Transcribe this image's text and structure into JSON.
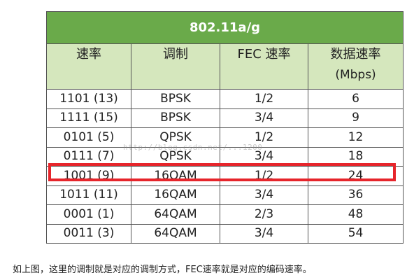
{
  "table": {
    "title": "802.11a/g",
    "headers": [
      "速率",
      "调制",
      "FEC 速率",
      "数据速率"
    ],
    "header_unit": "(Mbps)",
    "rows": [
      [
        "1101 (13)",
        "BPSK",
        "1/2",
        "6"
      ],
      [
        "1111 (15)",
        "BPSK",
        "3/4",
        "9"
      ],
      [
        "0101 (5)",
        "QPSK",
        "1/2",
        "12"
      ],
      [
        "0111 (7)",
        "QPSK",
        "3/4",
        "18"
      ],
      [
        "1001 (9)",
        "16QAM",
        "1/2",
        "24"
      ],
      [
        "1011 (11)",
        "16QAM",
        "3/4",
        "36"
      ],
      [
        "0001 (1)",
        "64QAM",
        "2/3",
        "48"
      ],
      [
        "0011 (3)",
        "64QAM",
        "3/4",
        "54"
      ]
    ],
    "highlighted_row": "1001 (9)"
  },
  "watermark": "http://blog.csdn.net/...1200",
  "caption": "如上图，这里的调制就是对应的调制方式，FEC速率就是对应的编码速率。",
  "colors": {
    "title_bg": "#6aaa4a",
    "header_bg": "#d5e7bd",
    "highlight": "#e6252b"
  }
}
